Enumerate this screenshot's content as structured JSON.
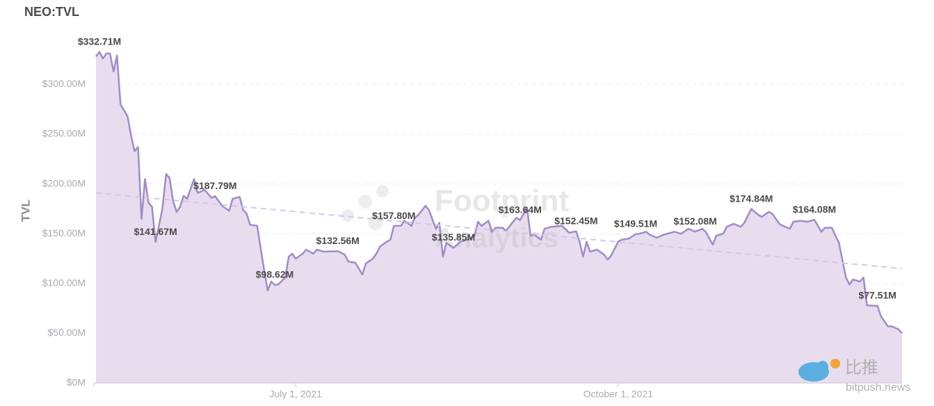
{
  "chart_data": {
    "type": "area",
    "title": "NEO:TVL",
    "y_label": "TVL",
    "watermark": [
      "Footprint",
      "Analytics"
    ],
    "source_logo": [
      "比推",
      "bitpush.news"
    ],
    "xlim": [
      "2021-05-05",
      "2021-12-21"
    ],
    "xticks": [
      {
        "value": "2021-07-01",
        "label": "July 1, 2021"
      },
      {
        "value": "2021-10-01",
        "label": "October 1, 2021"
      }
    ],
    "ylim": [
      0,
      345
    ],
    "yticks": [
      {
        "value": 0,
        "label": "$0M"
      },
      {
        "value": 50,
        "label": "$50.00M"
      },
      {
        "value": 100,
        "label": "$100.00M"
      },
      {
        "value": 150,
        "label": "$150.00M"
      },
      {
        "value": 200,
        "label": "$200.00M"
      },
      {
        "value": 250,
        "label": "$250.00M"
      },
      {
        "value": 300,
        "label": "$300.00M"
      }
    ],
    "grid": true,
    "x": [
      "2021-05-05",
      "2021-05-06",
      "2021-05-07",
      "2021-05-08",
      "2021-05-09",
      "2021-05-10",
      "2021-05-11",
      "2021-05-12",
      "2021-05-14",
      "2021-05-15",
      "2021-05-16",
      "2021-05-17",
      "2021-05-18",
      "2021-05-19",
      "2021-05-20",
      "2021-05-21",
      "2021-05-22",
      "2021-05-24",
      "2021-05-25",
      "2021-05-26",
      "2021-05-27",
      "2021-05-28",
      "2021-05-29",
      "2021-05-30",
      "2021-05-31",
      "2021-06-02",
      "2021-06-03",
      "2021-06-05",
      "2021-06-07",
      "2021-06-08",
      "2021-06-10",
      "2021-06-12",
      "2021-06-13",
      "2021-06-15",
      "2021-06-16",
      "2021-06-17",
      "2021-06-18",
      "2021-06-20",
      "2021-06-22",
      "2021-06-23",
      "2021-06-24",
      "2021-06-25",
      "2021-06-26",
      "2021-06-28",
      "2021-06-29",
      "2021-06-30",
      "2021-07-01",
      "2021-07-03",
      "2021-07-04",
      "2021-07-06",
      "2021-07-07",
      "2021-07-09",
      "2021-07-13",
      "2021-07-15",
      "2021-07-16",
      "2021-07-18",
      "2021-07-20",
      "2021-07-21",
      "2021-07-23",
      "2021-07-24",
      "2021-07-25",
      "2021-07-27",
      "2021-07-28",
      "2021-07-29",
      "2021-07-31",
      "2021-08-01",
      "2021-08-03",
      "2021-08-04",
      "2021-08-05",
      "2021-08-07",
      "2021-08-08",
      "2021-08-10",
      "2021-08-11",
      "2021-08-12",
      "2021-08-13",
      "2021-08-15",
      "2021-08-17",
      "2021-08-19",
      "2021-08-21",
      "2021-08-22",
      "2021-08-23",
      "2021-08-25",
      "2021-08-26",
      "2021-08-27",
      "2021-08-29",
      "2021-08-30",
      "2021-09-01",
      "2021-09-02",
      "2021-09-03",
      "2021-09-05",
      "2021-09-06",
      "2021-09-07",
      "2021-09-09",
      "2021-09-10",
      "2021-09-12",
      "2021-09-15",
      "2021-09-17",
      "2021-09-19",
      "2021-09-20",
      "2021-09-21",
      "2021-09-22",
      "2021-09-23",
      "2021-09-25",
      "2021-09-27",
      "2021-09-28",
      "2021-09-29",
      "2021-10-01",
      "2021-10-02",
      "2021-10-04",
      "2021-10-06",
      "2021-10-07",
      "2021-10-09",
      "2021-10-10",
      "2021-10-12",
      "2021-10-14",
      "2021-10-15",
      "2021-10-17",
      "2021-10-19",
      "2021-10-21",
      "2021-10-23",
      "2021-10-25",
      "2021-10-26",
      "2021-10-28",
      "2021-10-29",
      "2021-10-31",
      "2021-11-01",
      "2021-11-03",
      "2021-11-05",
      "2021-11-06",
      "2021-11-08",
      "2021-11-10",
      "2021-11-11",
      "2021-11-13",
      "2021-11-14",
      "2021-11-16",
      "2021-11-17",
      "2021-11-19",
      "2021-11-20",
      "2021-11-22",
      "2021-11-24",
      "2021-11-26",
      "2021-11-28",
      "2021-11-29",
      "2021-12-01",
      "2021-12-02",
      "2021-12-03",
      "2021-12-05",
      "2021-12-06",
      "2021-12-07",
      "2021-12-09",
      "2021-12-10",
      "2021-12-11",
      "2021-12-14",
      "2021-12-15",
      "2021-12-17",
      "2021-12-18",
      "2021-12-20",
      "2021-12-21"
    ],
    "series": [
      {
        "color": "#a08bc8",
        "fill": "#e7ddef",
        "values": [
          328,
          332.71,
          326,
          331,
          331,
          313,
          329,
          280,
          268,
          249,
          233,
          237,
          165,
          205,
          181,
          177,
          141.67,
          176,
          210,
          206,
          183,
          172,
          177,
          188,
          185,
          205,
          191,
          194,
          186,
          187.79,
          178,
          173,
          185,
          187,
          174,
          170,
          159,
          158,
          113,
          93,
          102,
          98.62,
          99,
          106,
          127,
          130,
          125,
          130,
          134,
          130,
          134,
          132,
          132.56,
          129,
          122,
          121,
          109,
          120,
          125,
          130,
          137,
          142,
          144,
          157.8,
          158,
          163,
          158,
          166,
          169,
          178,
          174,
          155,
          161,
          127,
          141,
          135.85,
          142,
          144,
          148,
          162,
          158,
          163,
          152,
          156,
          156,
          153,
          162,
          166,
          163.64,
          176,
          148,
          149,
          144,
          155,
          157,
          158,
          151,
          152.45,
          142,
          127,
          142,
          132,
          134,
          129,
          124,
          128,
          142,
          144,
          145,
          149.51,
          150,
          152,
          149,
          146,
          149,
          150,
          152,
          150,
          155,
          152.08,
          155,
          152,
          139,
          148,
          150,
          157,
          160,
          157,
          161,
          174.84,
          169,
          167,
          172,
          170,
          160,
          158,
          155,
          162,
          163,
          162,
          164.08,
          152,
          156,
          156,
          148,
          141,
          106,
          99,
          104,
          102,
          106,
          78,
          77.51,
          67,
          57,
          57,
          54,
          50
        ],
        "value_labels": [
          null,
          "$332.71M",
          null,
          null,
          null,
          null,
          null,
          null,
          null,
          null,
          null,
          null,
          null,
          null,
          null,
          null,
          "$141.67M",
          null,
          null,
          null,
          null,
          null,
          null,
          null,
          null,
          null,
          null,
          null,
          null,
          "$187.79M",
          null,
          null,
          null,
          null,
          null,
          null,
          null,
          null,
          null,
          null,
          null,
          "$98.62M",
          null,
          null,
          null,
          null,
          null,
          null,
          null,
          null,
          null,
          null,
          "$132.56M",
          null,
          null,
          null,
          null,
          null,
          null,
          null,
          null,
          null,
          null,
          "$157.80M",
          null,
          null,
          null,
          null,
          null,
          null,
          null,
          null,
          null,
          null,
          null,
          "$135.85M",
          null,
          null,
          null,
          null,
          null,
          null,
          null,
          null,
          null,
          null,
          null,
          null,
          "$163.64M",
          null,
          null,
          null,
          null,
          null,
          null,
          null,
          null,
          "$152.45M",
          null,
          null,
          null,
          null,
          null,
          null,
          null,
          null,
          null,
          null,
          null,
          "$149.51M",
          null,
          null,
          null,
          null,
          null,
          null,
          null,
          null,
          null,
          "$152.08M",
          null,
          null,
          null,
          null,
          null,
          null,
          null,
          null,
          null,
          "$174.84M",
          null,
          null,
          null,
          null,
          null,
          null,
          null,
          null,
          null,
          null,
          "$164.08M",
          null,
          null,
          null,
          null,
          null,
          null,
          null,
          null,
          null,
          null,
          null,
          "$77.51M",
          null,
          null,
          null,
          null,
          null
        ]
      }
    ],
    "trendline": {
      "color": "#d4c6e6",
      "x": [
        "2021-05-05",
        "2021-12-21"
      ],
      "values": [
        191,
        115
      ]
    }
  }
}
